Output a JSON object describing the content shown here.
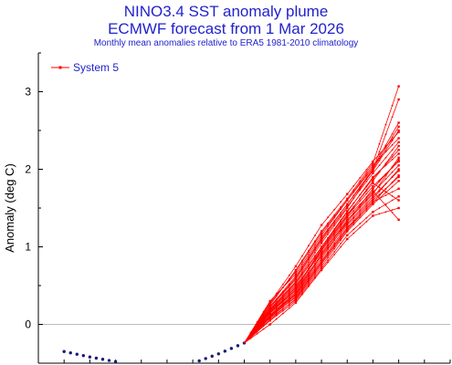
{
  "chart_data": {
    "type": "line",
    "title": "NINO3.4 SST anomaly plume",
    "subtitle": "ECMWF forecast from 1 Mar 2026",
    "caption": "Monthly mean anomalies relative to ERA5 1981-2010 climatology",
    "ylabel": "Anomaly (deg C)",
    "ylim": [
      -0.5,
      3.5
    ],
    "yticks": [
      0,
      1,
      2,
      3
    ],
    "grid": false,
    "legend": {
      "position": "top-left",
      "entries": [
        "System 5"
      ]
    },
    "colors": {
      "ensemble": "#ff0000",
      "observed": "#1a1a7a",
      "legend_text": "#2222cc",
      "title": "#2222cc"
    },
    "observed": {
      "x_months": [
        -7,
        -6,
        -5,
        -4,
        -3,
        -2,
        -1,
        0
      ],
      "values": [
        -0.35,
        -0.42,
        -0.48,
        -0.55,
        -0.56,
        -0.5,
        -0.38,
        -0.24
      ]
    },
    "ensemble": {
      "x_months": [
        0,
        1,
        2,
        3,
        4,
        5,
        6
      ],
      "members": [
        [
          -0.24,
          0.15,
          0.45,
          0.95,
          1.4,
          1.85,
          2.3
        ],
        [
          -0.24,
          0.22,
          0.6,
          1.1,
          1.55,
          2.0,
          2.55
        ],
        [
          -0.24,
          0.1,
          0.35,
          0.8,
          1.25,
          1.6,
          1.9
        ],
        [
          -0.24,
          0.05,
          0.3,
          0.72,
          1.15,
          1.45,
          1.65
        ],
        [
          -0.24,
          0.28,
          0.75,
          1.28,
          1.68,
          2.1,
          2.48
        ],
        [
          -0.24,
          0.18,
          0.52,
          0.98,
          1.45,
          1.9,
          2.2
        ],
        [
          -0.24,
          0.12,
          0.42,
          0.9,
          1.35,
          1.7,
          2.05
        ],
        [
          -0.24,
          0.3,
          0.65,
          1.15,
          1.6,
          2.05,
          2.4
        ],
        [
          -0.24,
          0.08,
          0.32,
          0.75,
          1.2,
          1.55,
          1.85
        ],
        [
          -0.24,
          0.2,
          0.55,
          1.05,
          1.5,
          2.0,
          2.9
        ],
        [
          -0.24,
          0.25,
          0.7,
          1.2,
          1.62,
          2.08,
          3.07
        ],
        [
          -0.24,
          0.15,
          0.48,
          0.95,
          1.4,
          1.78,
          2.1
        ],
        [
          -0.24,
          0.0,
          0.28,
          0.7,
          1.1,
          1.4,
          1.5
        ],
        [
          -0.24,
          0.12,
          0.4,
          0.88,
          1.3,
          1.65,
          1.98
        ],
        [
          -0.24,
          0.22,
          0.58,
          1.08,
          1.52,
          1.95,
          2.35
        ],
        [
          -0.24,
          0.17,
          0.5,
          0.92,
          1.38,
          1.72,
          1.35
        ],
        [
          -0.24,
          0.1,
          0.38,
          0.82,
          1.28,
          1.62,
          2.0
        ],
        [
          -0.24,
          0.27,
          0.68,
          1.18,
          1.6,
          2.02,
          2.6
        ],
        [
          -0.24,
          0.14,
          0.44,
          0.9,
          1.33,
          1.68,
          2.15
        ],
        [
          -0.24,
          0.19,
          0.54,
          1.0,
          1.46,
          1.88,
          2.25
        ],
        [
          -0.24,
          0.06,
          0.33,
          0.78,
          1.22,
          1.58,
          1.75
        ],
        [
          -0.24,
          0.23,
          0.62,
          1.12,
          1.55,
          1.98,
          2.5
        ],
        [
          -0.24,
          0.11,
          0.39,
          0.85,
          1.32,
          1.75,
          2.12
        ],
        [
          -0.24,
          0.16,
          0.47,
          0.97,
          1.42,
          1.82,
          1.6
        ],
        [
          -0.24,
          0.09,
          0.36,
          0.8,
          1.24,
          1.57,
          1.92
        ]
      ]
    }
  }
}
